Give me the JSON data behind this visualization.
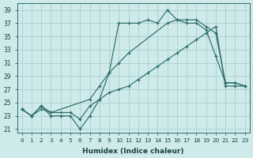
{
  "xlabel": "Humidex (Indice chaleur)",
  "bg_color": "#ceeaea",
  "line_color": "#2d6e68",
  "grid_color": "#aacfcf",
  "xlim": [
    -0.5,
    23.5
  ],
  "ylim": [
    20.5,
    40
  ],
  "xticks": [
    0,
    1,
    2,
    3,
    4,
    5,
    6,
    7,
    8,
    9,
    10,
    11,
    12,
    13,
    14,
    15,
    16,
    17,
    18,
    19,
    20,
    21,
    22,
    23
  ],
  "yticks": [
    21,
    23,
    25,
    27,
    29,
    31,
    33,
    35,
    37,
    39
  ],
  "series1_x": [
    0,
    1,
    2,
    3,
    4,
    5,
    6,
    7,
    8,
    9,
    10,
    11,
    12,
    13,
    14,
    15,
    16,
    17,
    18,
    19,
    20,
    21,
    22,
    23
  ],
  "series1_y": [
    24.0,
    23.0,
    24.5,
    23.0,
    23.0,
    23.0,
    21.0,
    23.0,
    25.5,
    29.5,
    37.0,
    37.0,
    37.0,
    37.5,
    37.0,
    39.0,
    37.5,
    37.0,
    37.0,
    36.0,
    32.0,
    28.0,
    28.0,
    27.5
  ],
  "series2_x": [
    0,
    1,
    2,
    3,
    7,
    8,
    9,
    10,
    11,
    15,
    16,
    17,
    18,
    19,
    20,
    21,
    22,
    23
  ],
  "series2_y": [
    24.0,
    23.0,
    24.5,
    23.5,
    25.5,
    27.5,
    29.5,
    31.0,
    32.5,
    37.0,
    37.5,
    37.5,
    37.5,
    36.5,
    35.5,
    28.0,
    28.0,
    27.5
  ],
  "series3_x": [
    0,
    1,
    2,
    3,
    4,
    5,
    6,
    7,
    8,
    9,
    10,
    11,
    12,
    13,
    14,
    15,
    16,
    17,
    18,
    19,
    20,
    21,
    22,
    23
  ],
  "series3_y": [
    24.0,
    23.0,
    24.0,
    23.5,
    23.5,
    23.5,
    22.5,
    24.5,
    25.5,
    26.5,
    27.0,
    27.5,
    28.5,
    29.5,
    30.5,
    31.5,
    32.5,
    33.5,
    34.5,
    35.5,
    36.5,
    27.5,
    27.5,
    27.5
  ]
}
